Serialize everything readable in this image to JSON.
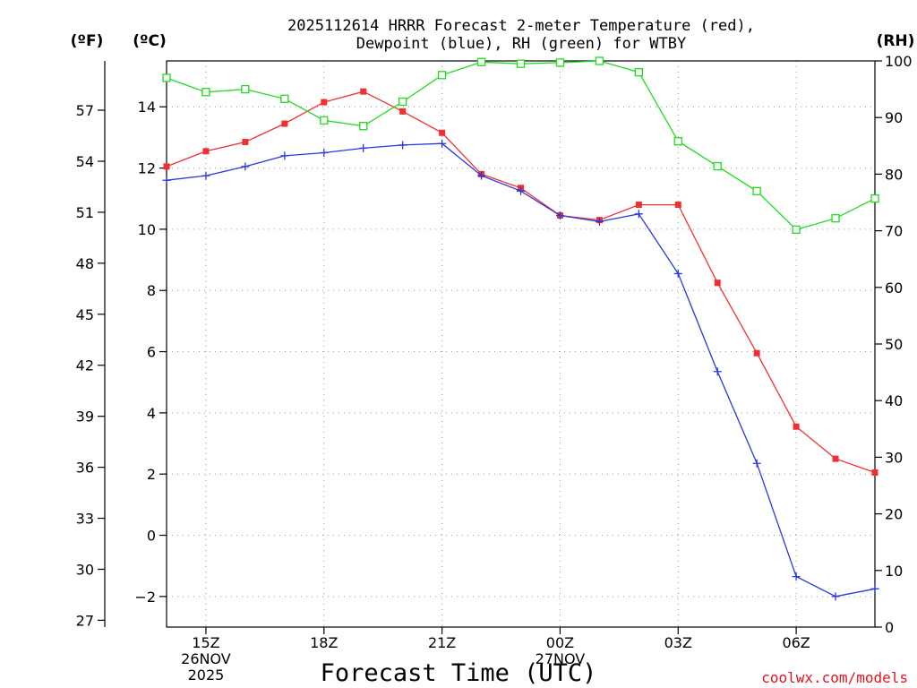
{
  "chart_data": {
    "type": "line",
    "title_line1": "2025112614 HRRR Forecast 2-meter Temperature (red),",
    "title_line2": "Dewpoint (blue), RH (green) for WTBY",
    "xlabel": "Forecast Time (UTC)",
    "credit": "coolwx.com/models",
    "units": {
      "fahrenheit": "(ºF)",
      "celsius": "(ºC)",
      "rh": "(RH)"
    },
    "x": [
      14,
      15,
      16,
      17,
      18,
      19,
      20,
      21,
      22,
      23,
      24,
      25,
      26,
      27,
      28,
      29,
      30,
      31,
      32
    ],
    "xlim": [
      14,
      32
    ],
    "x_ticks": [
      {
        "x": 15,
        "lines": [
          "15Z",
          "26NOV",
          "2025"
        ]
      },
      {
        "x": 18,
        "lines": [
          "18Z"
        ]
      },
      {
        "x": 21,
        "lines": [
          "21Z"
        ]
      },
      {
        "x": 24,
        "lines": [
          "00Z",
          "27NOV"
        ]
      },
      {
        "x": 27,
        "lines": [
          "03Z"
        ]
      },
      {
        "x": 30,
        "lines": [
          "06Z"
        ]
      }
    ],
    "y_celsius": {
      "ylim": [
        -3,
        15.5
      ],
      "ticks": [
        -2,
        0,
        2,
        4,
        6,
        8,
        10,
        12,
        14
      ],
      "tick_labels": [
        "−2",
        "0",
        "2",
        "4",
        "6",
        "8",
        "10",
        "12",
        "14"
      ]
    },
    "y_fahrenheit": {
      "ticks": [
        27,
        30,
        33,
        36,
        39,
        42,
        45,
        48,
        51,
        54,
        57
      ],
      "tick_labels": [
        "27",
        "30",
        "33",
        "36",
        "39",
        "42",
        "45",
        "48",
        "51",
        "54",
        "57"
      ]
    },
    "y_rh": {
      "ylim": [
        0,
        100
      ],
      "ticks": [
        0,
        10,
        20,
        30,
        40,
        50,
        60,
        70,
        80,
        90,
        100
      ],
      "tick_labels": [
        "0",
        "10",
        "20",
        "30",
        "40",
        "50",
        "60",
        "70",
        "80",
        "90",
        "100"
      ]
    },
    "series": [
      {
        "name": "Temperature",
        "axis": "celsius",
        "color": "#f03030",
        "marker": "square-filled",
        "values": [
          12.05,
          12.55,
          12.85,
          13.45,
          14.15,
          14.5,
          13.85,
          13.15,
          11.8,
          11.35,
          10.45,
          10.3,
          10.8,
          10.8,
          8.25,
          5.95,
          3.55,
          2.5,
          2.05
        ]
      },
      {
        "name": "Dewpoint",
        "axis": "celsius",
        "color": "#2838e0",
        "marker": "plus",
        "values": [
          11.6,
          11.75,
          12.05,
          12.4,
          12.5,
          12.65,
          12.75,
          12.8,
          11.75,
          11.25,
          10.45,
          10.25,
          10.5,
          8.55,
          5.35,
          2.35,
          -1.35,
          -2.0,
          -1.75
        ]
      },
      {
        "name": "RH",
        "axis": "rh",
        "color": "#1edc1e",
        "marker": "square-open",
        "values": [
          97,
          94.5,
          95,
          93.3,
          89.5,
          88.5,
          92.8,
          97.5,
          99.8,
          99.5,
          99.7,
          100,
          98,
          85.8,
          81.4,
          77,
          70.2,
          72.2,
          75.7
        ]
      }
    ]
  }
}
